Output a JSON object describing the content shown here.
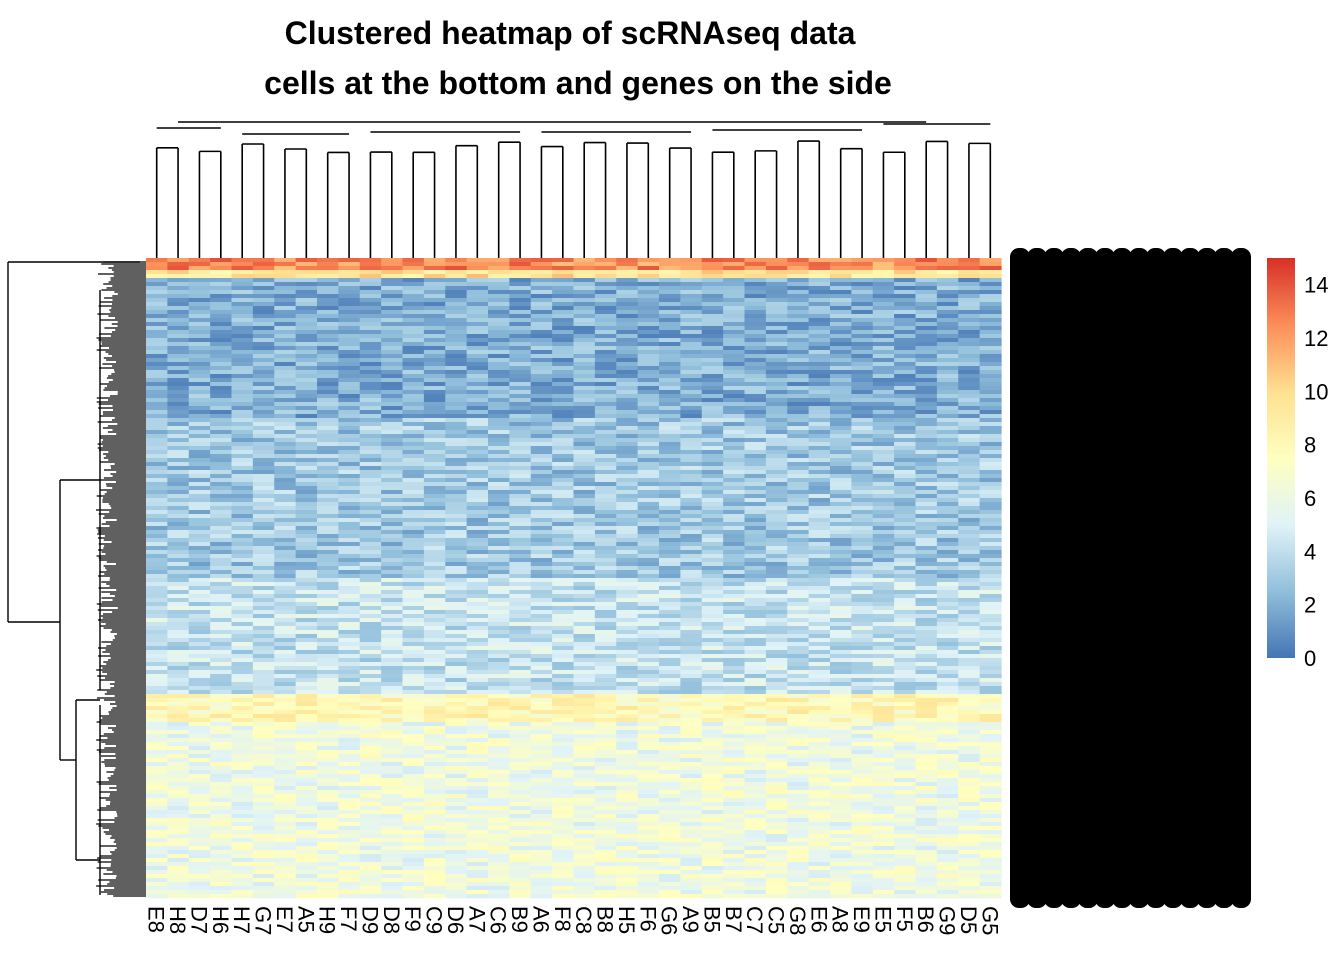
{
  "chart_data": {
    "type": "heatmap",
    "title_line1": "Clustered heatmap of scRNAseq data",
    "title_line2": "cells at the bottom and genes on the side",
    "columns": [
      "E8",
      "H8",
      "D7",
      "H6",
      "H7",
      "G7",
      "E7",
      "A5",
      "H9",
      "F7",
      "D9",
      "D8",
      "F9",
      "C9",
      "D6",
      "A7",
      "C6",
      "B9",
      "A6",
      "F8",
      "C8",
      "B8",
      "H5",
      "F6",
      "G6",
      "A9",
      "B5",
      "B7",
      "C7",
      "C5",
      "G8",
      "E6",
      "A8",
      "E9",
      "E5",
      "F5",
      "B6",
      "G9",
      "D5",
      "G5"
    ],
    "colorbar": {
      "min": 0,
      "max": 15,
      "ticks": [
        0,
        2,
        4,
        6,
        8,
        10,
        12,
        14
      ],
      "colors": [
        "#4575b4",
        "#91bfdb",
        "#e0f3f8",
        "#ffffbf",
        "#fee090",
        "#fc8d59",
        "#d73027"
      ]
    },
    "row_bands": [
      {
        "from": 0.0,
        "to": 0.015,
        "level": 12.5
      },
      {
        "from": 0.015,
        "to": 0.03,
        "level": 9.5
      },
      {
        "from": 0.03,
        "to": 0.25,
        "level": 2.0
      },
      {
        "from": 0.25,
        "to": 0.5,
        "level": 3.0
      },
      {
        "from": 0.5,
        "to": 0.68,
        "level": 4.2
      },
      {
        "from": 0.68,
        "to": 0.72,
        "level": 8.0
      },
      {
        "from": 0.72,
        "to": 1.0,
        "level": 6.2
      }
    ]
  }
}
